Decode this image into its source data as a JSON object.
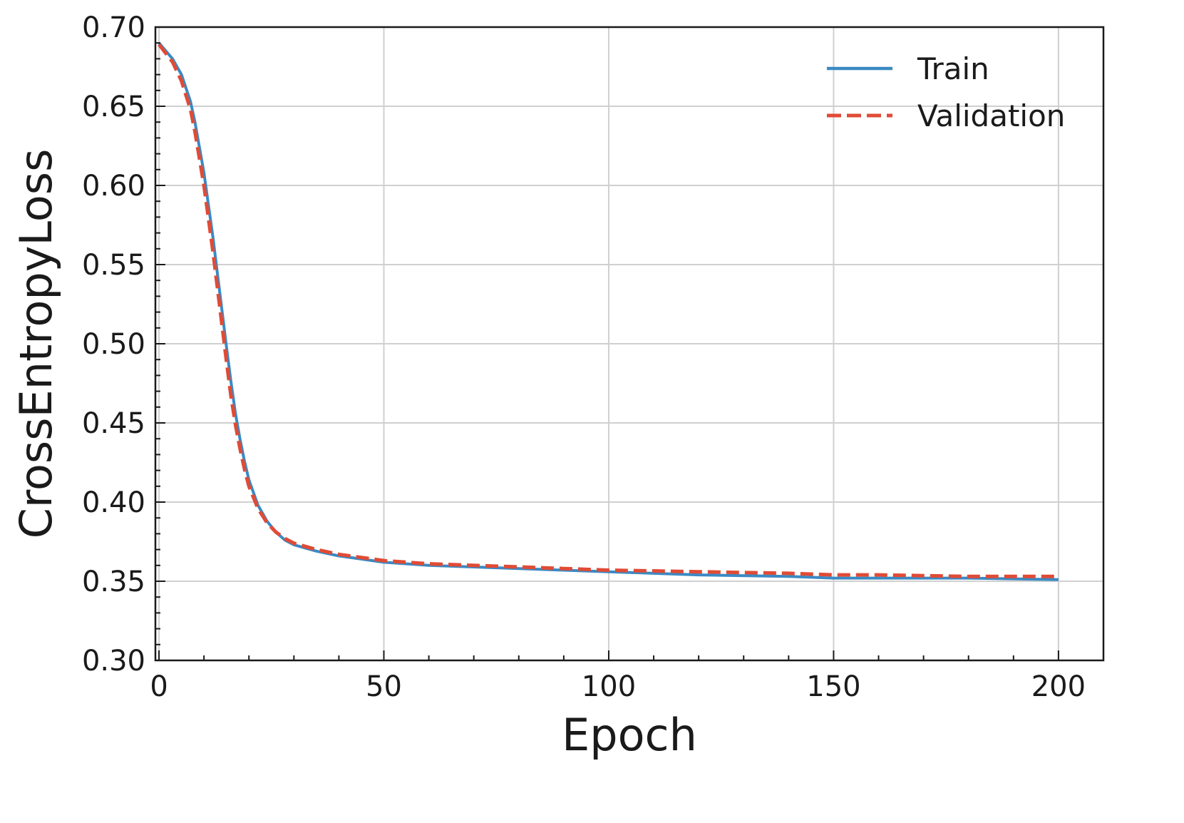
{
  "chart_data": {
    "type": "line",
    "xlabel": "Epoch",
    "ylabel": "CrossEntropyLoss",
    "xlim": [
      0,
      210
    ],
    "ylim": [
      0.3,
      0.7
    ],
    "xticks": [
      0,
      50,
      100,
      150,
      200
    ],
    "xtick_labels": [
      "0",
      "50",
      "100",
      "150",
      "200"
    ],
    "yticks": [
      0.3,
      0.35,
      0.4,
      0.45,
      0.5,
      0.55,
      0.6,
      0.65,
      0.7
    ],
    "ytick_labels": [
      "0.30",
      "0.35",
      "0.40",
      "0.45",
      "0.50",
      "0.55",
      "0.60",
      "0.65",
      "0.70"
    ],
    "grid": true,
    "legend_position": "top-right",
    "series": [
      {
        "name": "Train",
        "color": "#3a8ac4",
        "style": "solid",
        "x": [
          0,
          3,
          5,
          7,
          8,
          10,
          12,
          14,
          15,
          16,
          17,
          18,
          19,
          20,
          22,
          24,
          26,
          28,
          30,
          35,
          40,
          45,
          50,
          60,
          70,
          80,
          90,
          100,
          120,
          140,
          150,
          160,
          180,
          200
        ],
        "y": [
          0.69,
          0.68,
          0.67,
          0.653,
          0.64,
          0.608,
          0.567,
          0.521,
          0.498,
          0.476,
          0.456,
          0.44,
          0.426,
          0.414,
          0.398,
          0.388,
          0.381,
          0.376,
          0.373,
          0.369,
          0.366,
          0.364,
          0.362,
          0.36,
          0.359,
          0.358,
          0.357,
          0.356,
          0.354,
          0.353,
          0.352,
          0.352,
          0.352,
          0.351
        ]
      },
      {
        "name": "Validation",
        "color": "#e04b36",
        "style": "dashed",
        "x": [
          0,
          3,
          5,
          7,
          8,
          10,
          12,
          14,
          15,
          16,
          17,
          18,
          19,
          20,
          22,
          24,
          26,
          28,
          30,
          35,
          40,
          45,
          50,
          60,
          70,
          80,
          90,
          100,
          120,
          140,
          150,
          160,
          180,
          200
        ],
        "y": [
          0.689,
          0.678,
          0.666,
          0.648,
          0.634,
          0.6,
          0.558,
          0.512,
          0.489,
          0.467,
          0.449,
          0.434,
          0.421,
          0.41,
          0.396,
          0.387,
          0.381,
          0.377,
          0.374,
          0.37,
          0.367,
          0.365,
          0.363,
          0.361,
          0.36,
          0.359,
          0.358,
          0.357,
          0.356,
          0.355,
          0.354,
          0.354,
          0.353,
          0.353
        ]
      }
    ]
  }
}
